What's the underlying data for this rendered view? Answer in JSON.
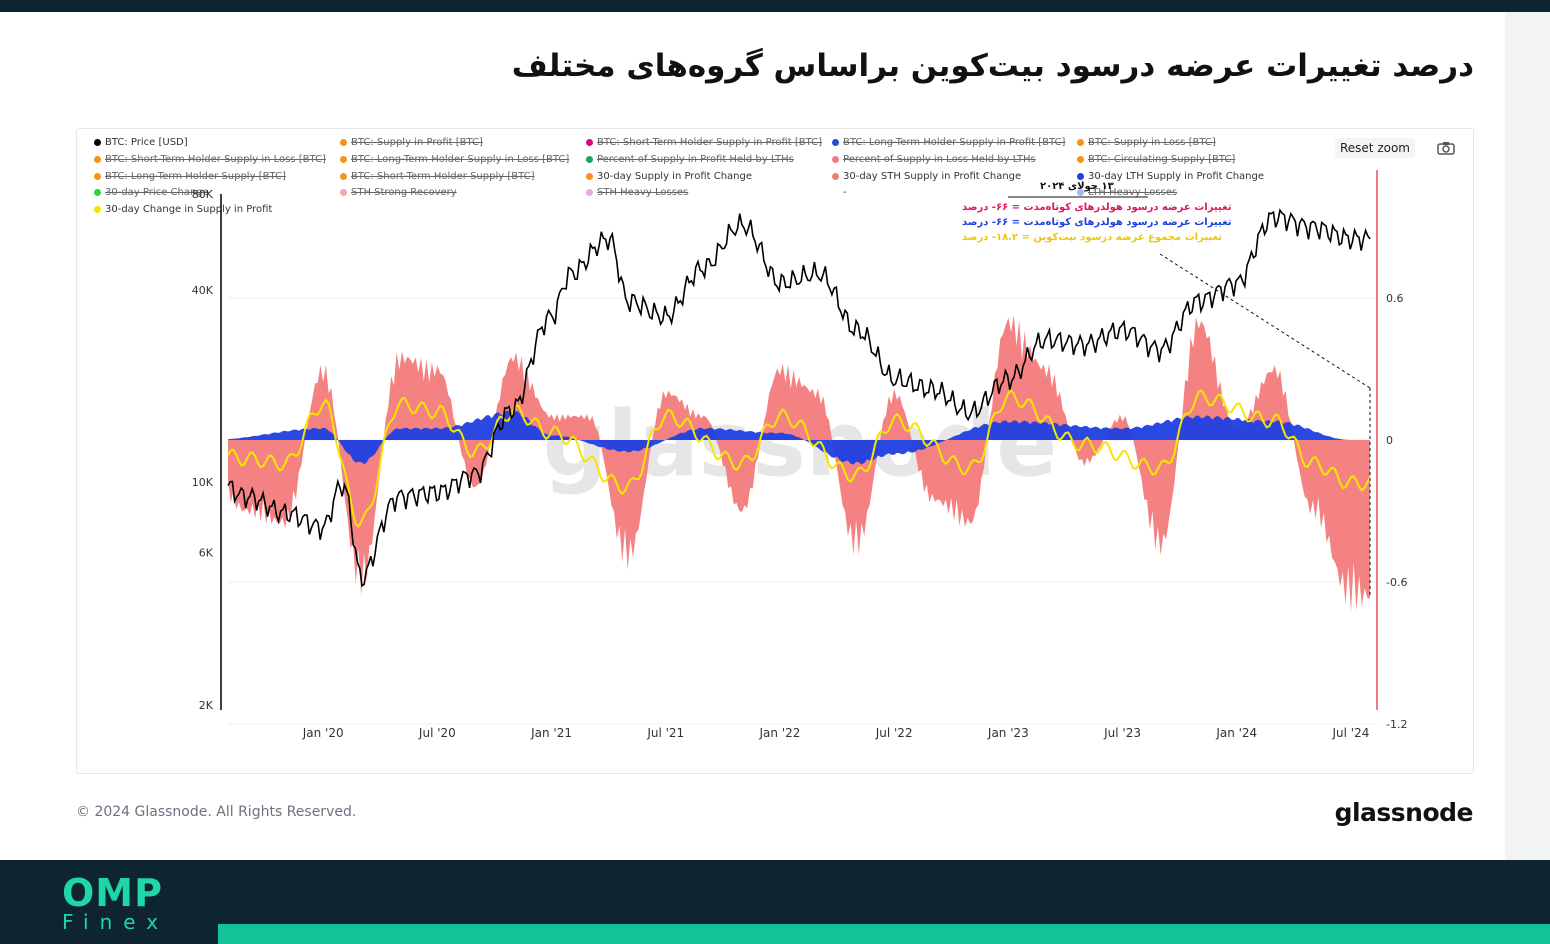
{
  "header": {
    "title": "درصد تغییرات عرضه درسود بیت‌کوین براساس گروه‌های مختلف"
  },
  "toolbar": {
    "reset_zoom_label": "Reset zoom",
    "camera_icon": "camera-icon"
  },
  "legend": [
    {
      "label": "BTC: Price [USD]",
      "color": "#000000",
      "active": true
    },
    {
      "label": "BTC: Supply in Profit [BTC]",
      "color": "#f7931a",
      "active": false
    },
    {
      "label": "BTC: Short-Term Holder Supply in Profit [BTC]",
      "color": "#e6007a",
      "active": false
    },
    {
      "label": "BTC: Long-Term Holder Supply in Profit [BTC]",
      "color": "#1f4fd6",
      "active": false
    },
    {
      "label": "BTC: Supply in Loss [BTC]",
      "color": "#f7931a",
      "active": false
    },
    {
      "label": "BTC: Short-Term Holder Supply in Loss [BTC]",
      "color": "#f7931a",
      "active": false
    },
    {
      "label": "BTC: Long-Term Holder Supply in Loss [BTC]",
      "color": "#f7931a",
      "active": false
    },
    {
      "label": "Percent of Supply in Profit Held by LTHs",
      "color": "#1aa36b",
      "active": false
    },
    {
      "label": "Percent of Supply in Loss Held by LTHs",
      "color": "#f07c7c",
      "active": false
    },
    {
      "label": "BTC: Circulating Supply [BTC]",
      "color": "#f7931a",
      "active": false
    },
    {
      "label": "BTC: Long-Term Holder Supply [BTC]",
      "color": "#f7931a",
      "active": false
    },
    {
      "label": "BTC: Short-Term Holder Supply [BTC]",
      "color": "#f7931a",
      "active": false
    },
    {
      "label": "30-day Supply in Profit Change",
      "color": "#f7931a",
      "active": true
    },
    {
      "label": "30-day STH Supply in Profit Change",
      "color": "#f07c7c",
      "active": true
    },
    {
      "label": "30-day LTH Supply in Profit Change",
      "color": "#1f3fe0",
      "active": true
    },
    {
      "label": "30-day Price Change",
      "color": "#2fd33b",
      "active": false
    },
    {
      "label": "STH Strong Recovery",
      "color": "#f4a7a7",
      "active": false
    },
    {
      "label": "STH Heavy Losses",
      "color": "#e9a7e0",
      "active": false
    },
    {
      "label": "-",
      "color": "#ffffff",
      "active": true
    },
    {
      "label": "LTH Heavy Losses",
      "color": "#9bbcf0",
      "active": false
    },
    {
      "label": "30-day Change in Supply in Profit",
      "color": "#f5e600",
      "active": true
    }
  ],
  "annotation": {
    "date": "۱۳ جولای ۲۰۲۴",
    "lines": [
      {
        "text": "تغییرات عرضه درسود هولدرهای کوتاه‌مدت = ۶۶- درصد",
        "color": "#e0155b"
      },
      {
        "text": "تغییرات عرضه درسود هولدرهای کوتاه‌مدت = ۶۶- درصد",
        "color": "#1f3fe0"
      },
      {
        "text": "تغییرات مجموع عرضه درسود بیت‌کوین = ۱۸.۲- درصد",
        "color": "#f2c600"
      }
    ]
  },
  "watermark": "glassnode",
  "footer": {
    "copyright": "© 2024 Glassnode. All Rights Reserved.",
    "brand": "glassnode"
  },
  "branding": {
    "omp": "OMP",
    "finex": "Finex"
  },
  "chart_data": {
    "type": "area",
    "x_ticks": [
      "Jan '20",
      "Jul '20",
      "Jan '21",
      "Jul '21",
      "Jan '22",
      "Jul '22",
      "Jan '23",
      "Jul '23",
      "Jan '24",
      "Jul '24"
    ],
    "left_axis": {
      "scale": "log",
      "ticks": [
        "80K",
        "40K",
        "10K",
        "6K",
        "2K"
      ]
    },
    "right_axis": {
      "ticks": [
        "0.6",
        "0",
        "-0.6",
        "-1.2"
      ],
      "ylim": [
        -1.2,
        1.2
      ]
    },
    "series": [
      {
        "name": "BTC: Price [USD]",
        "axis": "left",
        "points": [
          [
            "2019-07",
            10500
          ],
          [
            "2019-09",
            9000
          ],
          [
            "2019-11",
            8000
          ],
          [
            "2020-01",
            7200
          ],
          [
            "2020-02",
            9800
          ],
          [
            "2020-03",
            5000
          ],
          [
            "2020-05",
            9000
          ],
          [
            "2020-07",
            9300
          ],
          [
            "2020-09",
            10600
          ],
          [
            "2020-11",
            17000
          ],
          [
            "2021-01",
            33000
          ],
          [
            "2021-02",
            45000
          ],
          [
            "2021-04",
            58000
          ],
          [
            "2021-05",
            37000
          ],
          [
            "2021-07",
            33000
          ],
          [
            "2021-09",
            47000
          ],
          [
            "2021-11",
            64000
          ],
          [
            "2022-01",
            42000
          ],
          [
            "2022-03",
            45000
          ],
          [
            "2022-05",
            30000
          ],
          [
            "2022-07",
            21000
          ],
          [
            "2022-09",
            19500
          ],
          [
            "2022-11",
            16500
          ],
          [
            "2023-01",
            21000
          ],
          [
            "2023-03",
            28000
          ],
          [
            "2023-05",
            27000
          ],
          [
            "2023-07",
            30000
          ],
          [
            "2023-09",
            26000
          ],
          [
            "2023-11",
            37000
          ],
          [
            "2024-01",
            42000
          ],
          [
            "2024-03",
            68000
          ],
          [
            "2024-05",
            63000
          ],
          [
            "2024-07",
            58000
          ]
        ]
      },
      {
        "name": "30-day STH Supply in Profit Change",
        "axis": "right",
        "points": [
          [
            "2019-07",
            -0.15
          ],
          [
            "2019-09",
            -0.3
          ],
          [
            "2019-11",
            -0.35
          ],
          [
            "2020-01",
            0.3
          ],
          [
            "2020-03",
            -0.6
          ],
          [
            "2020-05",
            0.35
          ],
          [
            "2020-07",
            0.3
          ],
          [
            "2020-09",
            -0.2
          ],
          [
            "2020-11",
            0.35
          ],
          [
            "2021-01",
            0.1
          ],
          [
            "2021-03",
            0.1
          ],
          [
            "2021-05",
            -0.5
          ],
          [
            "2021-07",
            0.2
          ],
          [
            "2021-09",
            0.1
          ],
          [
            "2021-11",
            -0.3
          ],
          [
            "2022-01",
            0.3
          ],
          [
            "2022-03",
            0.2
          ],
          [
            "2022-05",
            -0.45
          ],
          [
            "2022-07",
            0.2
          ],
          [
            "2022-09",
            -0.25
          ],
          [
            "2022-11",
            -0.35
          ],
          [
            "2023-01",
            0.5
          ],
          [
            "2023-03",
            0.3
          ],
          [
            "2023-05",
            -0.1
          ],
          [
            "2023-07",
            0.1
          ],
          [
            "2023-09",
            -0.45
          ],
          [
            "2023-11",
            0.5
          ],
          [
            "2024-01",
            0.05
          ],
          [
            "2024-03",
            0.3
          ],
          [
            "2024-05",
            -0.3
          ],
          [
            "2024-07",
            -0.66
          ]
        ]
      },
      {
        "name": "30-day LTH Supply in Profit Change",
        "axis": "right",
        "points": [
          [
            "2019-07",
            0.0
          ],
          [
            "2020-01",
            0.05
          ],
          [
            "2020-03",
            -0.1
          ],
          [
            "2020-05",
            0.05
          ],
          [
            "2020-07",
            0.05
          ],
          [
            "2020-11",
            0.12
          ],
          [
            "2021-01",
            0.02
          ],
          [
            "2021-05",
            -0.05
          ],
          [
            "2021-09",
            0.05
          ],
          [
            "2022-01",
            0.03
          ],
          [
            "2022-05",
            -0.1
          ],
          [
            "2022-07",
            -0.06
          ],
          [
            "2023-01",
            0.08
          ],
          [
            "2023-07",
            0.05
          ],
          [
            "2023-11",
            0.1
          ],
          [
            "2024-03",
            0.08
          ],
          [
            "2024-07",
            0.0
          ]
        ]
      },
      {
        "name": "30-day Change in Supply in Profit",
        "axis": "right",
        "points": [
          [
            "2019-07",
            -0.05
          ],
          [
            "2019-09",
            -0.08
          ],
          [
            "2019-11",
            -0.1
          ],
          [
            "2020-01",
            0.15
          ],
          [
            "2020-03",
            -0.35
          ],
          [
            "2020-05",
            0.15
          ],
          [
            "2020-07",
            0.12
          ],
          [
            "2020-09",
            -0.05
          ],
          [
            "2020-11",
            0.12
          ],
          [
            "2021-01",
            0.03
          ],
          [
            "2021-05",
            -0.2
          ],
          [
            "2021-07",
            0.1
          ],
          [
            "2021-11",
            -0.1
          ],
          [
            "2022-01",
            0.1
          ],
          [
            "2022-05",
            -0.15
          ],
          [
            "2022-07",
            0.08
          ],
          [
            "2022-11",
            -0.12
          ],
          [
            "2023-01",
            0.18
          ],
          [
            "2023-05",
            -0.02
          ],
          [
            "2023-09",
            -0.12
          ],
          [
            "2023-11",
            0.18
          ],
          [
            "2024-03",
            0.08
          ],
          [
            "2024-05",
            -0.1
          ],
          [
            "2024-07",
            -0.182
          ]
        ]
      }
    ]
  }
}
